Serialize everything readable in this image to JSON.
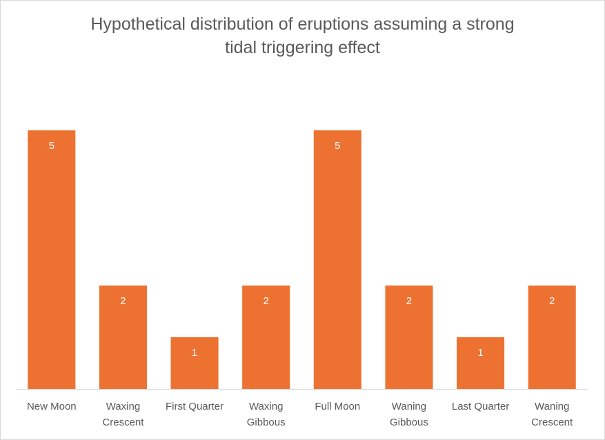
{
  "chart_data": {
    "type": "bar",
    "title_lines": [
      "Hypothetical distribution of eruptions assuming a strong",
      "tidal triggering effect"
    ],
    "xlabel": "",
    "ylabel": "",
    "categories": [
      [
        "New Moon"
      ],
      [
        "Waxing",
        "Crescent"
      ],
      [
        "First Quarter"
      ],
      [
        "Waxing",
        "Gibbous"
      ],
      [
        "Full Moon"
      ],
      [
        "Waning",
        "Gibbous"
      ],
      [
        "Last Quarter"
      ],
      [
        "Waning",
        "Crescent"
      ]
    ],
    "values": [
      5,
      2,
      1,
      2,
      5,
      2,
      1,
      2
    ],
    "ylim": [
      0,
      5
    ],
    "y_axis_visible": false,
    "grid": false,
    "legend": "none",
    "data_labels": "inside-top",
    "bar_color": "#ED7232",
    "data_label_color": "#FFFFFF",
    "text_color": "#595959",
    "axis_line_color": "#D9D9D9"
  }
}
